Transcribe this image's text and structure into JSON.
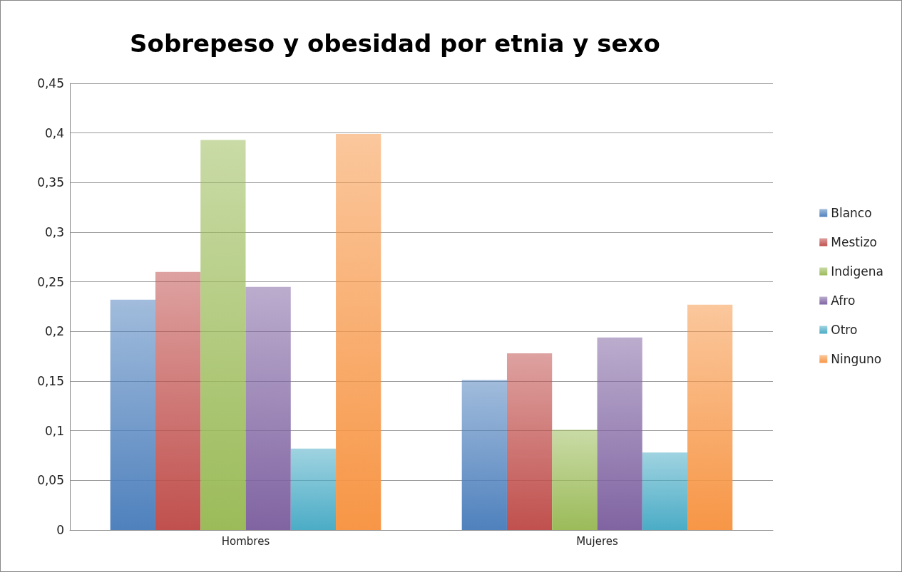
{
  "chart_data": {
    "type": "bar",
    "title": "Sobrepeso y obesidad por etnia y sexo",
    "categories": [
      "Hombres",
      "Mujeres"
    ],
    "series": [
      {
        "name": "Blanco",
        "color": "#4f81bd",
        "values": [
          0.232,
          0.151
        ]
      },
      {
        "name": "Mestizo",
        "color": "#c0504d",
        "values": [
          0.26,
          0.178
        ]
      },
      {
        "name": "Indigena",
        "color": "#9bbb59",
        "values": [
          0.393,
          0.101
        ]
      },
      {
        "name": "Afro",
        "color": "#8064a2",
        "values": [
          0.245,
          0.194
        ]
      },
      {
        "name": "Otro",
        "color": "#4bacc6",
        "values": [
          0.082,
          0.078
        ]
      },
      {
        "name": "Ninguno",
        "color": "#f79646",
        "values": [
          0.399,
          0.227
        ]
      }
    ],
    "ylim": [
      0,
      0.45
    ],
    "yticks": [
      {
        "value": 0,
        "label": "0"
      },
      {
        "value": 0.05,
        "label": "0,05"
      },
      {
        "value": 0.1,
        "label": "0,1"
      },
      {
        "value": 0.15,
        "label": "0,15"
      },
      {
        "value": 0.2,
        "label": "0,2"
      },
      {
        "value": 0.25,
        "label": "0,25"
      },
      {
        "value": 0.3,
        "label": "0,3"
      },
      {
        "value": 0.35,
        "label": "0,35"
      },
      {
        "value": 0.4,
        "label": "0,4"
      },
      {
        "value": 0.45,
        "label": "0,45"
      }
    ],
    "grid": "y",
    "legend": "right"
  }
}
